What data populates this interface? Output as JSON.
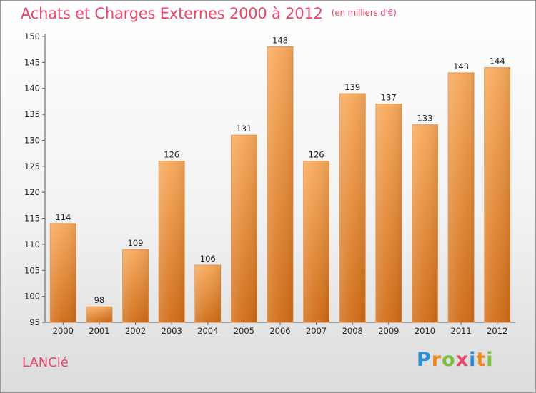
{
  "title": "Achats et Charges Externes 2000 à 2012",
  "unit_note": "(en milliers d'€)",
  "location": "LANClé",
  "logo": {
    "letters": [
      "P",
      "r",
      "o",
      "x",
      "i",
      "t",
      "i"
    ],
    "colors": [
      "#2a8fd6",
      "#f08a1c",
      "#7bbf3a",
      "#e8466a",
      "#2a8fd6",
      "#f08a1c",
      "#7bbf3a"
    ]
  },
  "colors": {
    "bar_top": "#f7a85a",
    "bar_bottom": "#d06c16",
    "title": "#e8466a"
  },
  "chart_data": {
    "type": "bar",
    "categories": [
      "2000",
      "2001",
      "2002",
      "2003",
      "2004",
      "2005",
      "2006",
      "2007",
      "2008",
      "2009",
      "2010",
      "2011",
      "2012"
    ],
    "values": [
      114,
      98,
      109,
      126,
      106,
      131,
      148,
      126,
      139,
      137,
      133,
      143,
      144
    ],
    "value_labels": [
      "114",
      "98",
      "109",
      "126",
      "106",
      "131",
      "148",
      "126",
      "139",
      "137",
      "133",
      "143",
      "144"
    ],
    "ylim": [
      95,
      150
    ],
    "yticks": [
      95,
      100,
      105,
      110,
      115,
      120,
      125,
      130,
      135,
      140,
      145,
      150
    ],
    "grid": false,
    "legend": "none"
  }
}
